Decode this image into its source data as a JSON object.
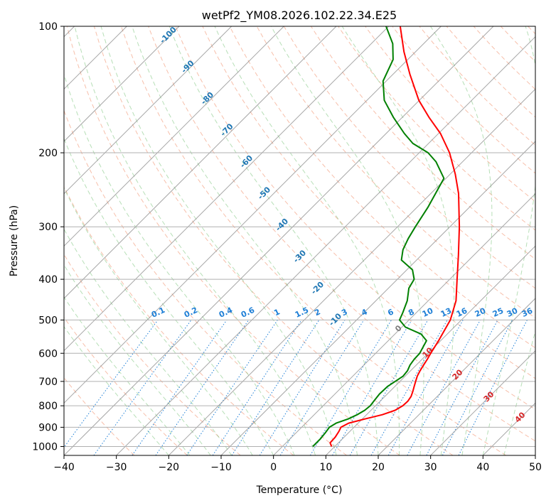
{
  "chart_data": {
    "type": "skew-t",
    "title": "wetPf2_YM08.2026.102.22.34.E25",
    "xlabel": "Temperature (°C)",
    "ylabel": "Pressure (hPa)",
    "xlim": [
      -40,
      50
    ],
    "ylim_hPa": [
      1050,
      100
    ],
    "x_ticks": [
      -40,
      -30,
      -20,
      -10,
      0,
      10,
      20,
      30,
      40,
      50
    ],
    "x_tick_labels": [
      "−40",
      "−30",
      "−20",
      "−10",
      "0",
      "10",
      "20",
      "30",
      "40",
      "50"
    ],
    "y_ticks": [
      1000,
      900,
      800,
      700,
      600,
      500,
      400,
      300,
      200,
      100
    ],
    "y_tick_labels": [
      "1000",
      "900",
      "800",
      "700",
      "600",
      "500",
      "400",
      "300",
      "200",
      "100"
    ],
    "series": [
      {
        "name": "temperature",
        "color": "#ff0000",
        "points": [
          [
            1000,
            9.4
          ],
          [
            980,
            8.4
          ],
          [
            950,
            8.3
          ],
          [
            920,
            7.9
          ],
          [
            900,
            7.5
          ],
          [
            880,
            8.2
          ],
          [
            860,
            10.5
          ],
          [
            840,
            13.0
          ],
          [
            820,
            14.6
          ],
          [
            800,
            15.2
          ],
          [
            780,
            15.3
          ],
          [
            760,
            15.0
          ],
          [
            740,
            14.4
          ],
          [
            720,
            13.7
          ],
          [
            700,
            13.0
          ],
          [
            680,
            12.3
          ],
          [
            660,
            11.8
          ],
          [
            640,
            11.4
          ],
          [
            620,
            11.0
          ],
          [
            600,
            10.5
          ],
          [
            560,
            9.6
          ],
          [
            500,
            7.9
          ],
          [
            450,
            5.3
          ],
          [
            400,
            1.4
          ],
          [
            350,
            -3.0
          ],
          [
            300,
            -8.2
          ],
          [
            250,
            -14.7
          ],
          [
            225,
            -19.0
          ],
          [
            200,
            -24.2
          ],
          [
            180,
            -29.6
          ],
          [
            165,
            -34.8
          ],
          [
            150,
            -40.1
          ],
          [
            130,
            -46.8
          ],
          [
            115,
            -52.2
          ],
          [
            100,
            -57.8
          ]
        ]
      },
      {
        "name": "dewpoint",
        "color": "#008000",
        "points": [
          [
            1000,
            5.8
          ],
          [
            960,
            5.8
          ],
          [
            930,
            5.6
          ],
          [
            900,
            5.3
          ],
          [
            880,
            5.8
          ],
          [
            860,
            7.3
          ],
          [
            840,
            8.2
          ],
          [
            820,
            8.8
          ],
          [
            800,
            9.0
          ],
          [
            780,
            8.8
          ],
          [
            750,
            8.5
          ],
          [
            720,
            8.6
          ],
          [
            700,
            9.1
          ],
          [
            680,
            9.6
          ],
          [
            660,
            9.4
          ],
          [
            640,
            8.8
          ],
          [
            620,
            8.5
          ],
          [
            600,
            8.4
          ],
          [
            560,
            7.3
          ],
          [
            540,
            5.0
          ],
          [
            520,
            0.7
          ],
          [
            500,
            -1.8
          ],
          [
            480,
            -2.6
          ],
          [
            450,
            -4.0
          ],
          [
            420,
            -6.1
          ],
          [
            400,
            -6.8
          ],
          [
            380,
            -8.9
          ],
          [
            360,
            -12.9
          ],
          [
            340,
            -14.6
          ],
          [
            320,
            -15.7
          ],
          [
            300,
            -16.6
          ],
          [
            270,
            -17.9
          ],
          [
            250,
            -19.1
          ],
          [
            230,
            -20.4
          ],
          [
            210,
            -25.1
          ],
          [
            200,
            -28.3
          ],
          [
            190,
            -33.0
          ],
          [
            180,
            -36.5
          ],
          [
            165,
            -41.6
          ],
          [
            150,
            -46.7
          ],
          [
            135,
            -50.6
          ],
          [
            120,
            -52.8
          ],
          [
            110,
            -55.9
          ],
          [
            100,
            -60.5
          ]
        ]
      }
    ],
    "dry_adiabat_labels": [
      "-100",
      "-90",
      "-80",
      "-70",
      "-60",
      "-50",
      "-40",
      "-30",
      "-20",
      "-10"
    ],
    "mixing_ratio_labels": [
      "0.1",
      "0.2",
      "0.4",
      "0.6",
      "1",
      "1.5",
      "2",
      "3",
      "4",
      "6",
      "8",
      "10",
      "13",
      "16",
      "20",
      "25",
      "30",
      "36"
    ],
    "moist_adiabat_labels": [
      "0",
      "10",
      "20",
      "30",
      "40"
    ],
    "colors": {
      "temperature": "#ff0000",
      "dewpoint": "#008000",
      "isotherm": "#8a8a8a",
      "dry_adiabat": "#f08a64",
      "moist_adiabat": "#6fbf6f",
      "mixing_ratio": "#1e7fd6",
      "dry_label": "#1f77b4",
      "moist_label": "#d62728",
      "zero_label": "#7f7f7f",
      "bg_curve": "#d9b78c"
    }
  }
}
